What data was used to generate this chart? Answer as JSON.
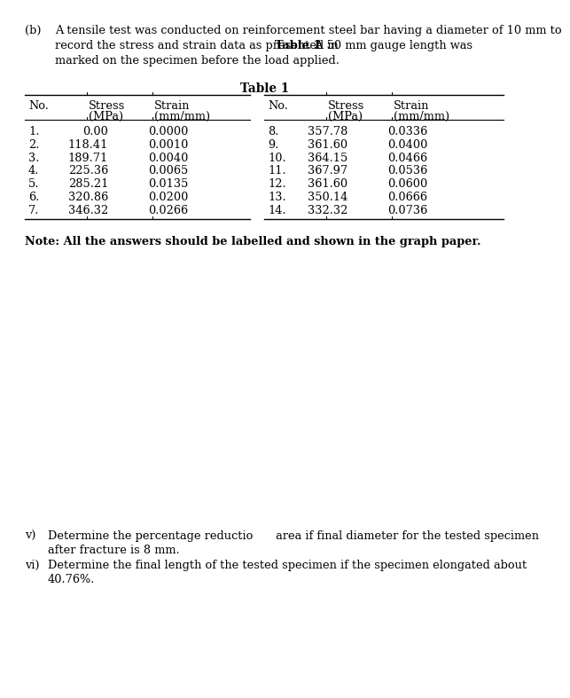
{
  "background_color": "#ffffff",
  "intro_label": "(b)",
  "intro_line1": "A tensile test was conducted on reinforcement steel bar having a diameter of 10 mm to",
  "intro_line2_pre": "record the stress and strain data as presented in ",
  "intro_line2_bold": "Table 1",
  "intro_line2_post": ". A 50 mm gauge length was",
  "intro_line3": "marked on the specimen before the load applied.",
  "table_title": "Table 1",
  "left_data": [
    [
      "1.",
      "0.00",
      "0.0000"
    ],
    [
      "2.",
      "118.41",
      "0.0010"
    ],
    [
      "3.",
      "189.71",
      "0.0040"
    ],
    [
      "4.",
      "225.36",
      "0.0065"
    ],
    [
      "5.",
      "285.21",
      "0.0135"
    ],
    [
      "6.",
      "320.86",
      "0.0200"
    ],
    [
      "7.",
      "346.32",
      "0.0266"
    ]
  ],
  "right_data": [
    [
      "8.",
      "357.78",
      "0.0336"
    ],
    [
      "9.",
      "361.60",
      "0.0400"
    ],
    [
      "10.",
      "364.15",
      "0.0466"
    ],
    [
      "11.",
      "367.97",
      "0.0536"
    ],
    [
      "12.",
      "361.60",
      "0.0600"
    ],
    [
      "13.",
      "350.14",
      "0.0666"
    ],
    [
      "14.",
      "332.32",
      "0.0736"
    ]
  ],
  "note_bold": "Note: All the answers should be labelled and shown in the graph paper.",
  "qv_label": "v)",
  "qv_line1": "Determine the percentage reductio  area if final diameter for the tested specimen",
  "qv_line2": "after fracture is 8 mm.",
  "qvi_label": "vi)",
  "qvi_line1": "Determine the final length of the tested specimen if the specimen elongated about",
  "qvi_line2": "40.76%.",
  "body_fs": 9.3,
  "table_fs": 9.3
}
